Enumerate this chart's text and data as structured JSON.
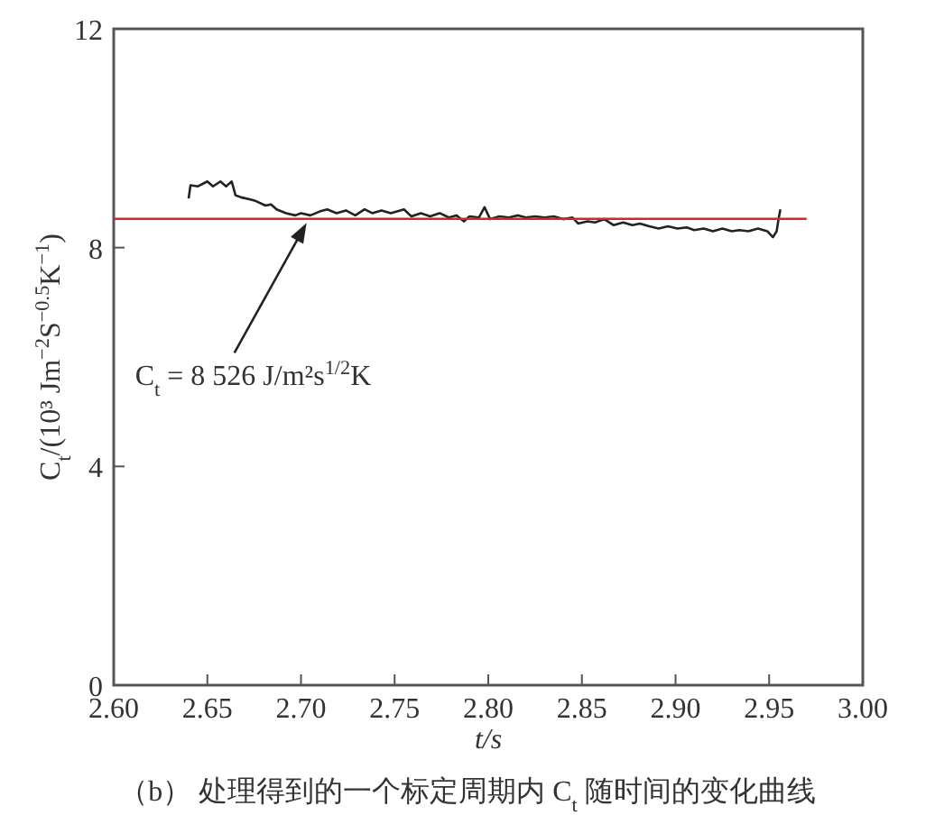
{
  "chart_data": {
    "type": "line",
    "xlabel": "t/s",
    "ylabel": "C$_{t}$/(10³ Jm$^{−2}$S$^{−0.5}$K$^{−1}$)",
    "xlim": [
      2.6,
      3.0
    ],
    "xticks": [
      {
        "value": 2.6,
        "label": "2.60"
      },
      {
        "value": 2.65,
        "label": "2.65"
      },
      {
        "value": 2.7,
        "label": "2.70"
      },
      {
        "value": 2.75,
        "label": "2.75"
      },
      {
        "value": 2.8,
        "label": "2.80"
      },
      {
        "value": 2.85,
        "label": "2.85"
      },
      {
        "value": 2.9,
        "label": "2.90"
      },
      {
        "value": 2.95,
        "label": "2.95"
      },
      {
        "value": 3.0,
        "label": "3.00"
      }
    ],
    "ylim": [
      0,
      12
    ],
    "yticks": [
      0,
      4,
      8,
      12
    ],
    "grid": false,
    "series": [
      {
        "color": "#222222",
        "x": [
          2.64,
          2.641,
          2.645,
          2.65,
          2.653,
          2.657,
          2.66,
          2.663,
          2.665,
          2.668,
          2.673,
          2.676,
          2.681,
          2.684,
          2.687,
          2.692,
          2.697,
          2.7,
          2.705,
          2.71,
          2.714,
          2.719,
          2.724,
          2.729,
          2.734,
          2.738,
          2.743,
          2.748,
          2.755,
          2.759,
          2.764,
          2.769,
          2.774,
          2.779,
          2.783,
          2.787,
          2.79,
          2.795,
          2.798,
          2.801,
          2.806,
          2.811,
          2.816,
          2.82,
          2.825,
          2.83,
          2.835,
          2.84,
          2.845,
          2.848,
          2.853,
          2.857,
          2.862,
          2.867,
          2.872,
          2.877,
          2.881,
          2.886,
          2.891,
          2.896,
          2.901,
          2.906,
          2.91,
          2.915,
          2.92,
          2.925,
          2.93,
          2.934,
          2.939,
          2.944,
          2.949,
          2.952,
          2.954,
          2.955,
          2.956
        ],
        "values": [
          8.9,
          9.14,
          9.12,
          9.21,
          9.12,
          9.21,
          9.12,
          9.21,
          8.96,
          8.92,
          8.88,
          8.85,
          8.77,
          8.79,
          8.7,
          8.63,
          8.59,
          8.63,
          8.59,
          8.66,
          8.7,
          8.63,
          8.68,
          8.59,
          8.7,
          8.63,
          8.68,
          8.63,
          8.7,
          8.57,
          8.63,
          8.57,
          8.63,
          8.55,
          8.59,
          8.48,
          8.57,
          8.55,
          8.74,
          8.52,
          8.57,
          8.55,
          8.59,
          8.55,
          8.57,
          8.55,
          8.57,
          8.52,
          8.55,
          8.44,
          8.48,
          8.46,
          8.52,
          8.41,
          8.46,
          8.41,
          8.44,
          8.39,
          8.35,
          8.39,
          8.35,
          8.37,
          8.32,
          8.35,
          8.3,
          8.35,
          8.3,
          8.32,
          8.3,
          8.35,
          8.3,
          8.19,
          8.3,
          8.52,
          8.7
        ]
      },
      {
        "color": "#d62728",
        "x": [
          2.6,
          2.97
        ],
        "values": [
          8.526,
          8.526
        ]
      }
    ],
    "annotations": [
      {
        "text": "C$_{t}$ = 8 526 J/m²s$^{1/2}$K",
        "x": 2.703,
        "y": 8.45
      },
      "（b） 处理得到的一个标定周期内 C$_{t}$ 随时间的变化曲线"
    ]
  }
}
